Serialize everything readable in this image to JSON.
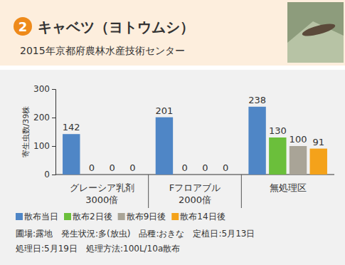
{
  "chart_data": {
    "type": "bar",
    "panel_number": 2,
    "title": "キャベツ（ヨトウムシ）",
    "subtitle": "2015年京都府農林水産技術センター",
    "y_label": "寄生虫数/39株",
    "categories": [
      "グレーシア乳剤\n3000倍",
      "Fフロアブル\n2000倍",
      "無処理区"
    ],
    "series": [
      {
        "name": "散布当日",
        "color": "#4f86c6",
        "values": [
          142,
          201,
          238
        ]
      },
      {
        "name": "散布2日後",
        "color": "#6bbf3b",
        "values": [
          0,
          0,
          130
        ]
      },
      {
        "name": "散布9日後",
        "color": "#a9a497",
        "values": [
          0,
          0,
          100
        ]
      },
      {
        "name": "散布14日後",
        "color": "#f4a21a",
        "values": [
          0,
          0,
          91
        ]
      }
    ],
    "ylim": [
      0,
      300
    ],
    "yticks": [
      0,
      100,
      200,
      300
    ],
    "grid": false,
    "data_labels": true,
    "legend": "bottom",
    "notes": [
      "圃場:露地　発生状況:多(放虫)　品種:おきな　定植日:5月13日",
      "処理日:5月19日　処理方法:100L/10a散布"
    ]
  }
}
